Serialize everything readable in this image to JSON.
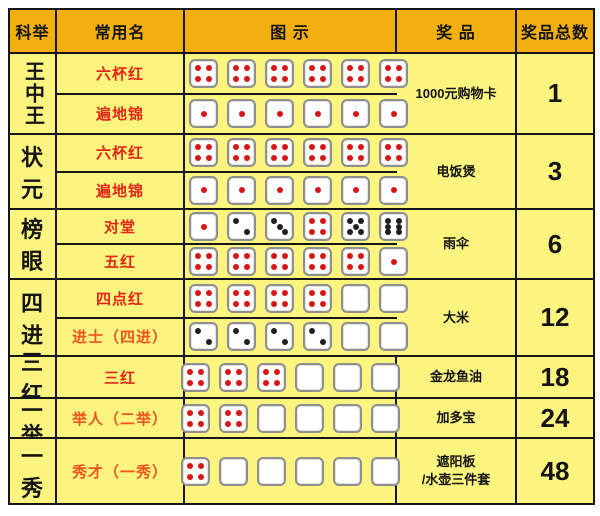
{
  "header": {
    "rank": "科举",
    "common_name": "常用名",
    "diagram": "图 示",
    "prize": "奖 品",
    "prize_total": "奖品总数"
  },
  "colors": {
    "header_bg": "#f2af0d",
    "body_bg": "#fbf47e",
    "grid_line": "#161616",
    "name_red": "#e32517",
    "name_orange": "#ec5420",
    "pip_red": "#d91616",
    "pip_black": "#1f1f1f"
  },
  "rows": [
    {
      "rank": "王中王",
      "subs": [
        {
          "name": "六杯红",
          "tone": "red",
          "dice": [
            4,
            4,
            4,
            4,
            4,
            4
          ]
        },
        {
          "name": "遍地锦",
          "tone": "red",
          "dice": [
            1,
            1,
            1,
            1,
            1,
            1
          ]
        }
      ],
      "prize": "1000元购物卡",
      "count": "1"
    },
    {
      "rank": "状元",
      "subs": [
        {
          "name": "六杯红",
          "tone": "red",
          "dice": [
            4,
            4,
            4,
            4,
            4,
            4
          ]
        },
        {
          "name": "遍地锦",
          "tone": "red",
          "dice": [
            1,
            1,
            1,
            1,
            1,
            1
          ]
        }
      ],
      "prize": "电饭煲",
      "count": "3"
    },
    {
      "rank": "榜眼",
      "subs": [
        {
          "name": "对堂",
          "tone": "red",
          "dice": [
            1,
            2,
            3,
            4,
            5,
            6
          ]
        },
        {
          "name": "五红",
          "tone": "red",
          "dice": [
            4,
            4,
            4,
            4,
            4,
            1
          ]
        }
      ],
      "prize": "雨伞",
      "count": "6"
    },
    {
      "rank": "四进",
      "subs": [
        {
          "name": "四点红",
          "tone": "red",
          "dice": [
            4,
            4,
            4,
            4,
            0,
            0
          ]
        },
        {
          "name": "进士（四进）",
          "tone": "orange",
          "dice": [
            2,
            2,
            2,
            2,
            0,
            0
          ]
        }
      ],
      "prize": "大米",
      "count": "12"
    },
    {
      "rank": "三红",
      "subs": [
        {
          "name": "三红",
          "tone": "red",
          "dice": [
            4,
            4,
            4,
            0,
            0,
            0
          ]
        }
      ],
      "prize": "金龙鱼油",
      "count": "18"
    },
    {
      "rank": "二举",
      "subs": [
        {
          "name": "举人（二举）",
          "tone": "orange",
          "dice": [
            4,
            4,
            0,
            0,
            0,
            0
          ]
        }
      ],
      "prize": "加多宝",
      "count": "24"
    },
    {
      "rank": "一秀",
      "subs": [
        {
          "name": "秀才（一秀）",
          "tone": "orange",
          "dice": [
            4,
            0,
            0,
            0,
            0,
            0
          ]
        }
      ],
      "prize": "遮阳板\n/水壶三件套",
      "count": "48"
    }
  ]
}
